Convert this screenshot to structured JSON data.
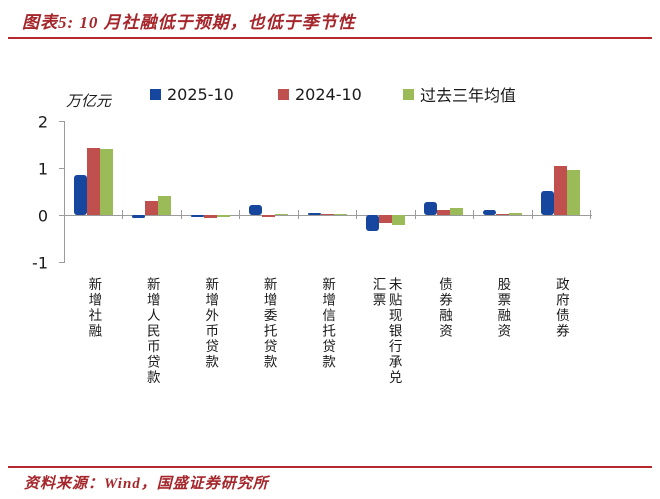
{
  "title": "图表5: 10 月社融低于预期，也低于季节性",
  "footer": {
    "source_text": "资料来源：Wind，国盛证券研究所"
  },
  "colors": {
    "series_blue": "#17469E",
    "series_red": "#C0504D",
    "series_green": "#9BBB59",
    "heading_red": "#A5262B",
    "rule_red": "#B4282E",
    "axis_gray": "#9B9B9B"
  },
  "chart_data": {
    "type": "bar",
    "title": "图表5: 10 月社融低于预期，也低于季节性",
    "unit_label": "万亿元",
    "ylabel": "万亿元",
    "xlabel": "",
    "ylim": [
      -1,
      2
    ],
    "yticks": [
      2,
      1,
      0,
      -1
    ],
    "grid": false,
    "legend_position": "top",
    "categories": [
      "新增社融",
      "新增人民币贷款",
      "新增外币贷款",
      "新增委托贷款",
      "新增信托贷款",
      "未贴现银行承兑汇票",
      "债券融资",
      "股票融资",
      "政府债券"
    ],
    "series": [
      {
        "name": "2025-10",
        "color": "#17469E",
        "values": [
          0.85,
          -0.06,
          -0.05,
          0.22,
          0.05,
          -0.35,
          0.28,
          0.1,
          0.52
        ]
      },
      {
        "name": "2024-10",
        "color": "#C0504D",
        "values": [
          1.43,
          0.3,
          -0.07,
          -0.01,
          0.01,
          -0.17,
          0.1,
          0.02,
          1.05
        ]
      },
      {
        "name": "过去三年均值",
        "color": "#9BBB59",
        "values": [
          1.4,
          0.4,
          -0.03,
          0.01,
          0.01,
          -0.22,
          0.15,
          0.04,
          0.95
        ]
      }
    ]
  }
}
